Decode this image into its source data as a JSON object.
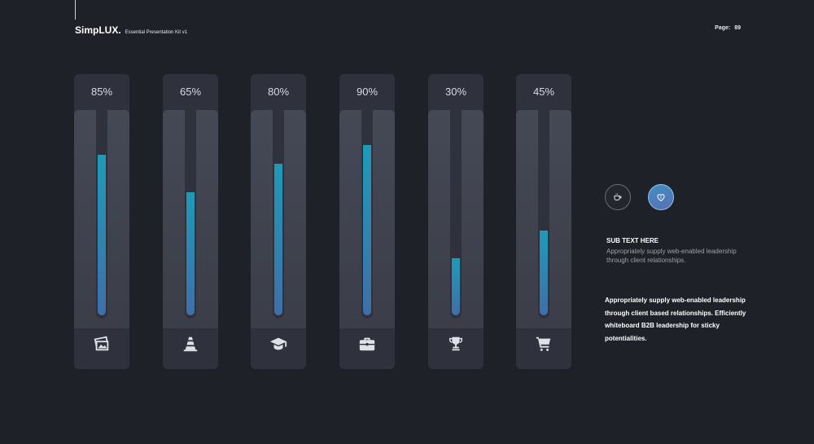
{
  "header": {
    "brand_name": "SimpLUX.",
    "brand_subtitle": "Essential Presentation Kit v1",
    "page_label": "Page:",
    "page_number": "89"
  },
  "bars": [
    {
      "label": "85%",
      "value": 0.85,
      "icon": "image-icon"
    },
    {
      "label": "65%",
      "value": 0.65,
      "icon": "traffic-cone-icon"
    },
    {
      "label": "80%",
      "value": 0.8,
      "icon": "graduation-cap-icon"
    },
    {
      "label": "90%",
      "value": 0.9,
      "icon": "briefcase-icon"
    },
    {
      "label": "30%",
      "value": 0.3,
      "icon": "trophy-icon"
    },
    {
      "label": "45%",
      "value": 0.45,
      "icon": "shopping-cart-icon"
    }
  ],
  "colors": {
    "background": "#1f2128",
    "card": "#2f323c",
    "fill_top": "#1f9ab8",
    "fill_bottom": "#3f6fa8"
  },
  "side": {
    "icons": [
      "coffee-cup-icon",
      "heart-shield-icon"
    ],
    "sub_title": "SUB TEXT HERE",
    "sub_text": "Appropriately supply web-enabled leadership through client relationships.",
    "paragraph": "Appropriately supply web-enabled leadership through client based relationships. Efficiently whiteboard B2B leadership for sticky potentialities."
  }
}
